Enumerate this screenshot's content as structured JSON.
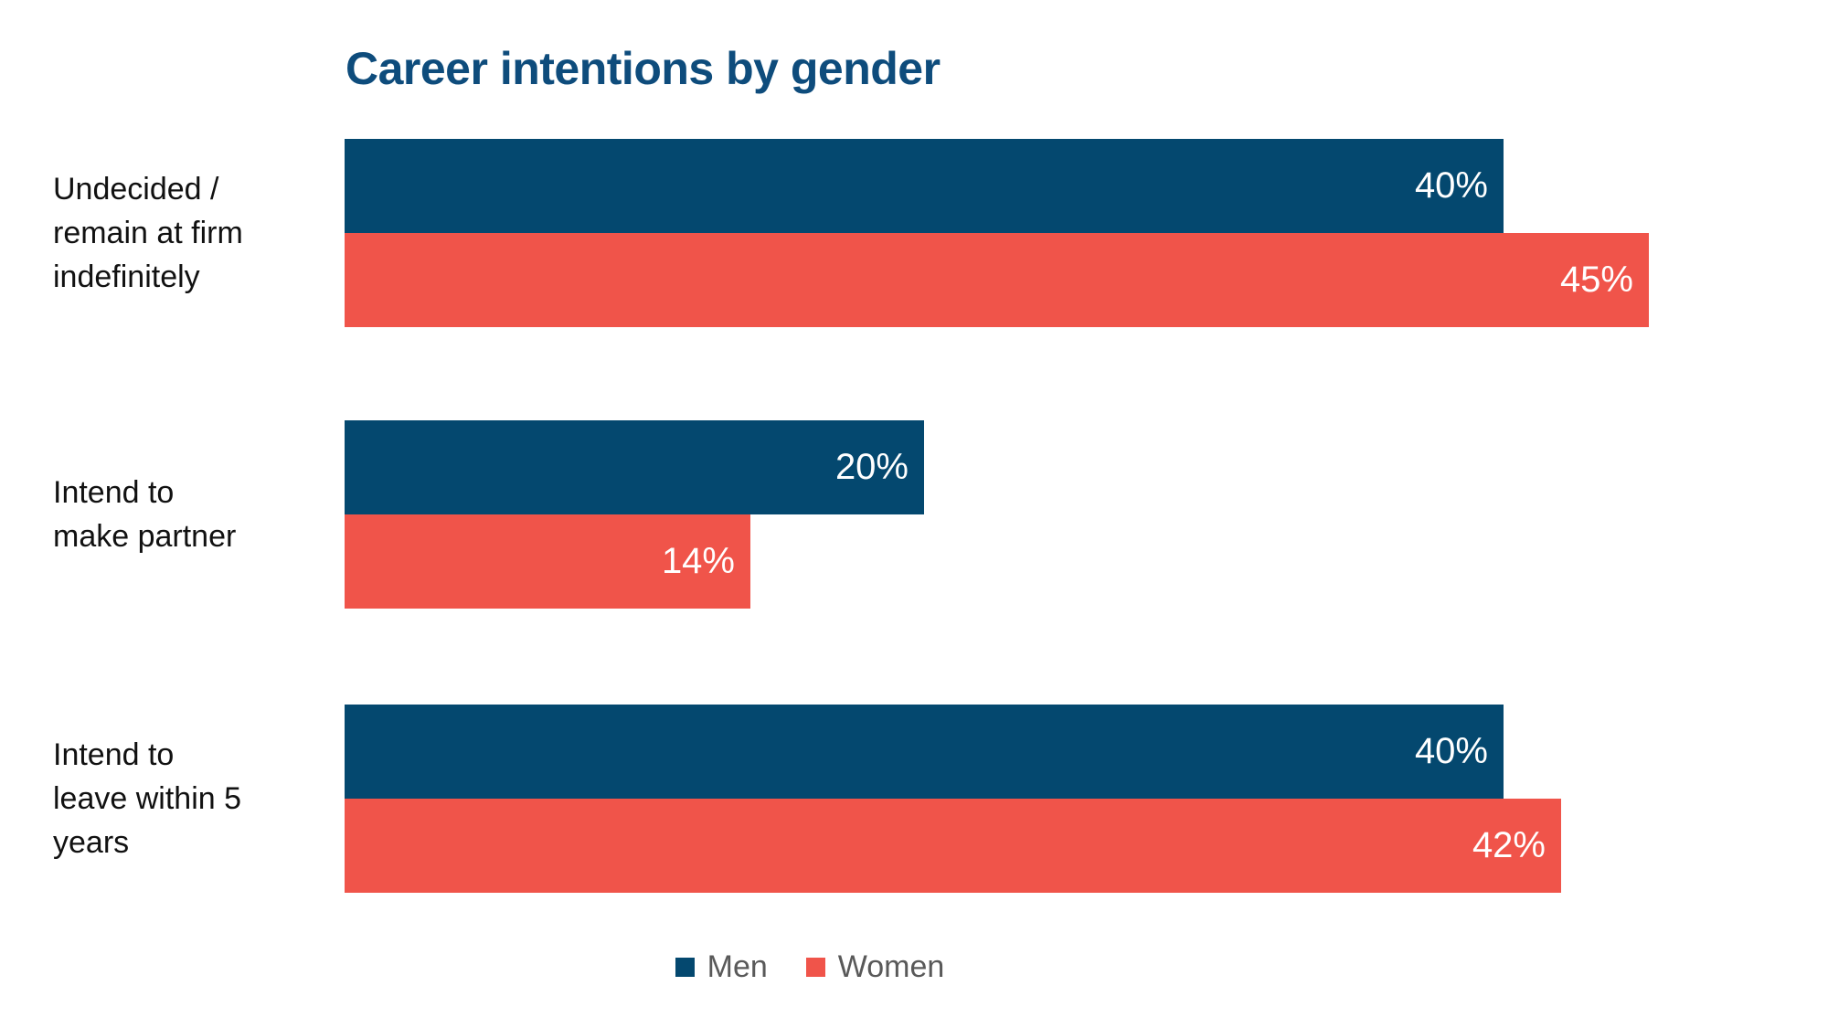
{
  "chart_data": {
    "type": "bar",
    "orientation": "horizontal",
    "title": "Career intentions by gender",
    "title_color": "#0E4C7C",
    "categories": [
      "Undecided / remain at firm indefinitely",
      "Intend to make partner",
      "Intend to leave within 5 years"
    ],
    "categories_display": [
      "Undecided /\nremain at firm\nindefinitely",
      "Intend to\nmake partner",
      "Intend to\nleave within 5\nyears"
    ],
    "series": [
      {
        "name": "Men",
        "color": "#04486F",
        "values": [
          40,
          20,
          40
        ],
        "labels": [
          "40%",
          "20%",
          "40%"
        ]
      },
      {
        "name": "Women",
        "color": "#F0544A",
        "values": [
          45,
          14,
          42
        ],
        "labels": [
          "45%",
          "14%",
          "42%"
        ]
      }
    ],
    "value_suffix": "%",
    "xlim": [
      0,
      50
    ],
    "grid": false,
    "legend_position": "bottom",
    "legend_text_color": "#595959",
    "data_label_color": "#FFFFFF"
  }
}
